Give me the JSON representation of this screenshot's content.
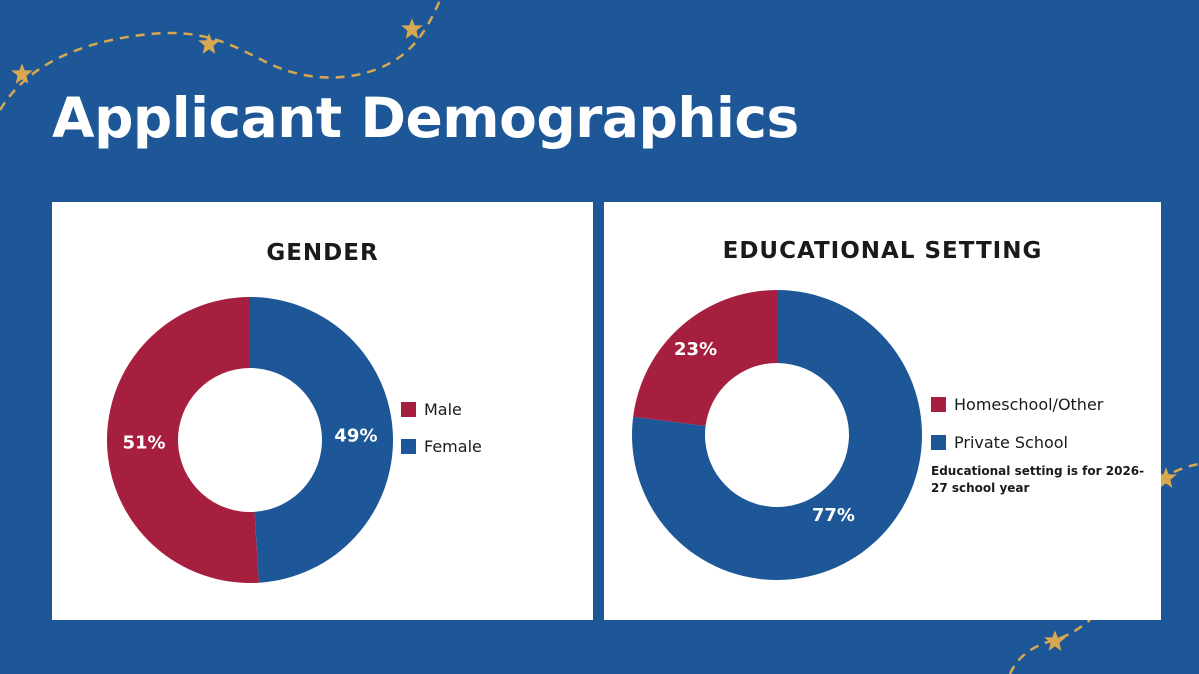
{
  "colors": {
    "background": "#1d5797",
    "red": "#a71f3f",
    "blue": "#1d5797",
    "gold": "#d8a851"
  },
  "page": {
    "title": "Applicant Demographics"
  },
  "chart_data": [
    {
      "type": "pie",
      "title": "GENDER",
      "categories": [
        "Male",
        "Female"
      ],
      "values": [
        51,
        49
      ],
      "labels": [
        "51%",
        "49%"
      ],
      "colors": [
        "#a71f3f",
        "#1d5797"
      ],
      "legend": "right"
    },
    {
      "type": "pie",
      "title": "EDUCATIONAL SETTING",
      "categories": [
        "Homeschool/Other",
        "Private School"
      ],
      "values": [
        23,
        77
      ],
      "labels": [
        "23%",
        "77%"
      ],
      "colors": [
        "#a71f3f",
        "#1d5797"
      ],
      "legend": "right",
      "note": "Educational setting is for 2026-27 school year"
    }
  ]
}
